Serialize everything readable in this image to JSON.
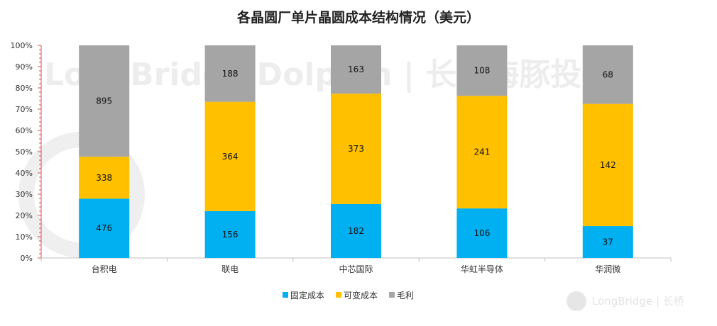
{
  "chart_data": {
    "type": "bar",
    "stacked": "percent",
    "title": "各晶圆厂单片晶圆成本结构情况（美元）",
    "categories": [
      "台积电",
      "联电",
      "中芯国际",
      "华虹半导体",
      "华润微"
    ],
    "series": [
      {
        "name": "固定成本",
        "color": "#00b0f0",
        "values": [
          476,
          156,
          182,
          106,
          37
        ]
      },
      {
        "name": "可变成本",
        "color": "#ffc000",
        "values": [
          338,
          364,
          373,
          241,
          142
        ]
      },
      {
        "name": "毛利",
        "color": "#a5a5a5",
        "values": [
          895,
          188,
          163,
          108,
          68
        ]
      }
    ],
    "yticks": [
      "0%",
      "10%",
      "20%",
      "30%",
      "40%",
      "50%",
      "60%",
      "70%",
      "80%",
      "90%",
      "100%"
    ],
    "ylim": [
      0,
      100
    ],
    "legend_position": "bottom",
    "grid": false
  },
  "watermark": {
    "text": "LongBridge Dolphin | 长桥海豚投研",
    "brand": "LongBridge | 长桥"
  }
}
